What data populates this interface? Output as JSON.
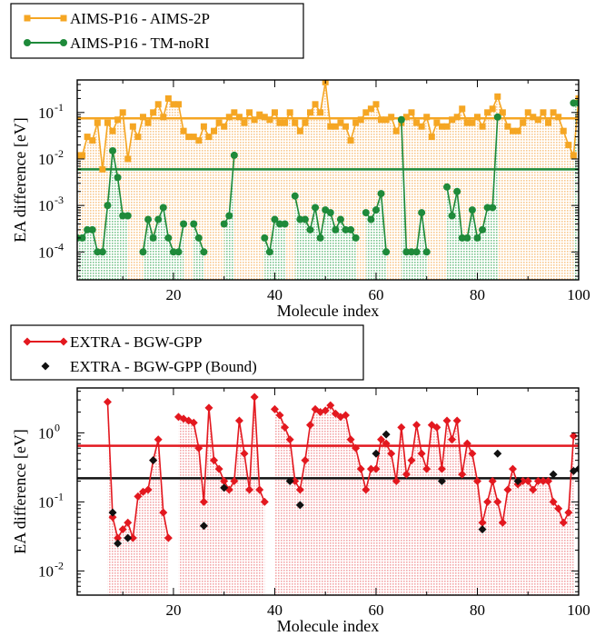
{
  "chart_data": [
    {
      "type": "line",
      "xlabel": "Molecule index",
      "ylabel": "EA difference [eV]",
      "xlim": [
        1,
        100
      ],
      "ylim_log10": [
        -4.6,
        -0.3
      ],
      "yscale": "log",
      "x_ticks": [
        20,
        40,
        60,
        80,
        100
      ],
      "y_ticks": [
        {
          "value": 0.0001,
          "label": "10",
          "exp": "-4"
        },
        {
          "value": 0.001,
          "label": "10",
          "exp": "-3"
        },
        {
          "value": 0.01,
          "label": "10",
          "exp": "-2"
        },
        {
          "value": 0.1,
          "label": "10",
          "exp": "-1"
        }
      ],
      "legend_position": "top-left",
      "series": [
        {
          "name": "AIMS-P16 - AIMS-2P",
          "color": "#f5a623",
          "fill_color": "#f9c98f",
          "marker": "square",
          "mean": 0.075,
          "x": [
            1,
            2,
            3,
            4,
            5,
            6,
            7,
            8,
            9,
            10,
            11,
            12,
            13,
            14,
            15,
            16,
            17,
            18,
            19,
            20,
            21,
            22,
            23,
            24,
            25,
            26,
            27,
            28,
            29,
            30,
            31,
            32,
            33,
            34,
            35,
            36,
            37,
            38,
            39,
            40,
            41,
            42,
            43,
            44,
            45,
            46,
            47,
            48,
            49,
            50,
            51,
            52,
            53,
            54,
            55,
            56,
            57,
            58,
            59,
            60,
            61,
            62,
            63,
            64,
            65,
            66,
            67,
            68,
            69,
            70,
            71,
            72,
            73,
            74,
            75,
            76,
            77,
            78,
            79,
            80,
            81,
            82,
            83,
            84,
            85,
            86,
            87,
            88,
            89,
            90,
            91,
            92,
            93,
            94,
            95,
            96,
            97,
            98,
            99,
            100
          ],
          "values": [
            0.012,
            0.012,
            0.03,
            0.025,
            0.06,
            0.006,
            0.06,
            0.04,
            0.07,
            0.1,
            0.01,
            0.05,
            0.03,
            0.08,
            0.06,
            0.1,
            0.15,
            0.08,
            0.2,
            0.15,
            0.15,
            0.04,
            0.03,
            0.03,
            0.025,
            0.05,
            0.03,
            0.04,
            0.06,
            0.05,
            0.08,
            0.1,
            0.08,
            0.06,
            0.1,
            0.07,
            0.09,
            0.08,
            0.07,
            0.1,
            0.06,
            0.06,
            0.1,
            0.06,
            0.04,
            0.06,
            0.1,
            0.15,
            0.1,
            0.45,
            0.05,
            0.05,
            0.06,
            0.05,
            0.025,
            0.06,
            0.07,
            0.1,
            0.12,
            0.15,
            0.07,
            0.07,
            0.08,
            0.04,
            0.06,
            0.08,
            0.1,
            0.06,
            0.05,
            0.08,
            0.03,
            0.06,
            0.05,
            0.05,
            0.07,
            0.08,
            0.12,
            0.06,
            0.06,
            0.08,
            0.05,
            0.1,
            0.12,
            0.22,
            0.1,
            0.05,
            0.04,
            0.04,
            0.06,
            0.1,
            0.08,
            0.07,
            0.1,
            0.06,
            0.1,
            0.08,
            0.04,
            0.02,
            0.012,
            0.2
          ]
        },
        {
          "name": "AIMS-P16 - TM-noRI",
          "color": "#1e8a3a",
          "fill_color": "#7cc58e",
          "marker": "circle",
          "mean": 0.006,
          "x": [
            1,
            2,
            3,
            4,
            5,
            6,
            7,
            8,
            9,
            10,
            11,
            12,
            13,
            14,
            15,
            16,
            17,
            18,
            19,
            20,
            21,
            22,
            23,
            24,
            25,
            26,
            27,
            28,
            29,
            30,
            31,
            32,
            33,
            34,
            35,
            36,
            37,
            38,
            39,
            40,
            41,
            42,
            43,
            44,
            45,
            46,
            47,
            48,
            49,
            50,
            51,
            52,
            53,
            54,
            55,
            56,
            57,
            58,
            59,
            60,
            61,
            62,
            63,
            64,
            65,
            66,
            67,
            68,
            69,
            70,
            71,
            72,
            73,
            74,
            75,
            76,
            77,
            78,
            79,
            80,
            81,
            82,
            83,
            84,
            85,
            86,
            87,
            88,
            89,
            90,
            91,
            92,
            93,
            94,
            95,
            96,
            97,
            98,
            99,
            100
          ],
          "values": [
            0.0002,
            0.0002,
            0.0003,
            0.0003,
            0.0001,
            0.0001,
            0.001,
            0.015,
            0.004,
            0.0006,
            0.0006,
            null,
            null,
            0.0001,
            0.0005,
            0.0002,
            0.0005,
            0.0009,
            0.0002,
            0.0001,
            0.0001,
            0.0004,
            null,
            0.0004,
            0.0002,
            0.0001,
            null,
            null,
            null,
            0.0004,
            0.0006,
            0.012,
            null,
            null,
            null,
            null,
            null,
            0.0002,
            0.0001,
            0.0005,
            0.0004,
            0.0004,
            null,
            0.0016,
            0.0005,
            0.0005,
            0.0003,
            0.0009,
            0.0002,
            0.0008,
            0.0007,
            0.0003,
            0.0005,
            0.0003,
            0.0003,
            0.0002,
            null,
            0.0007,
            0.0005,
            0.0008,
            0.0018,
            0.0001,
            null,
            null,
            0.07,
            0.0001,
            0.0001,
            0.0001,
            0.0007,
            0.0001,
            null,
            null,
            null,
            0.0025,
            0.0006,
            0.002,
            0.0002,
            0.0002,
            0.0008,
            0.0002,
            0.0003,
            0.0009,
            0.0009,
            0.08,
            null,
            null,
            null,
            null,
            null,
            null,
            null,
            null,
            null,
            null,
            null,
            null,
            null,
            null,
            0.16,
            0.16
          ]
        }
      ]
    },
    {
      "type": "line",
      "xlabel": "Molecule index",
      "ylabel": "EA difference [eV]",
      "xlim": [
        1,
        100
      ],
      "ylim_log10": [
        -2.35,
        0.65
      ],
      "yscale": "log",
      "x_ticks": [
        20,
        40,
        60,
        80,
        100
      ],
      "y_ticks": [
        {
          "value": 0.01,
          "label": "10",
          "exp": "-2"
        },
        {
          "value": 0.1,
          "label": "10",
          "exp": "-1"
        },
        {
          "value": 1,
          "label": "10",
          "exp": "0"
        }
      ],
      "legend_position": "top-left",
      "series": [
        {
          "name": "EXTRA - BGW-GPP",
          "color": "#e3181f",
          "fill_color": "#f4a6a9",
          "marker": "diamond",
          "mean": 0.65,
          "x": [
            1,
            2,
            3,
            4,
            5,
            6,
            7,
            8,
            9,
            10,
            11,
            12,
            13,
            14,
            15,
            16,
            17,
            18,
            19,
            20,
            21,
            22,
            23,
            24,
            25,
            26,
            27,
            28,
            29,
            30,
            31,
            32,
            33,
            34,
            35,
            36,
            37,
            38,
            39,
            40,
            41,
            42,
            43,
            44,
            45,
            46,
            47,
            48,
            49,
            50,
            51,
            52,
            53,
            54,
            55,
            56,
            57,
            58,
            59,
            60,
            61,
            62,
            63,
            64,
            65,
            66,
            67,
            68,
            69,
            70,
            71,
            72,
            73,
            74,
            75,
            76,
            77,
            78,
            79,
            80,
            81,
            82,
            83,
            84,
            85,
            86,
            87,
            88,
            89,
            90,
            91,
            92,
            93,
            94,
            95,
            96,
            97,
            98,
            99,
            100
          ],
          "values": [
            null,
            null,
            null,
            null,
            null,
            null,
            2.8,
            0.06,
            0.03,
            0.04,
            0.05,
            0.03,
            0.12,
            0.14,
            0.15,
            0.4,
            0.8,
            0.07,
            0.03,
            null,
            1.7,
            1.6,
            1.5,
            1.4,
            0.6,
            0.1,
            2.3,
            0.4,
            0.3,
            0.2,
            0.15,
            0.2,
            1.5,
            0.5,
            0.15,
            3.3,
            0.15,
            0.1,
            null,
            2.2,
            1.8,
            1.2,
            0.8,
            0.2,
            0.15,
            0.4,
            1.3,
            2.2,
            2.0,
            2.1,
            2.5,
            1.9,
            1.7,
            1.8,
            0.8,
            0.6,
            0.3,
            0.15,
            0.3,
            0.3,
            0.8,
            0.7,
            0.5,
            0.2,
            1.2,
            0.25,
            0.4,
            1.3,
            0.5,
            0.3,
            1.3,
            1.2,
            0.3,
            1.5,
            0.8,
            1.5,
            0.25,
            0.7,
            0.5,
            0.2,
            0.05,
            0.1,
            0.2,
            0.1,
            0.05,
            0.15,
            0.3,
            0.18,
            0.2,
            0.2,
            0.15,
            0.2,
            0.2,
            0.2,
            0.1,
            0.08,
            0.05,
            0.07,
            0.9,
            null
          ]
        },
        {
          "name": "EXTRA - BGW-GPP (Bound)",
          "color": "#111111",
          "marker": "diamond",
          "mean": 0.22,
          "x": [
            8,
            9,
            11,
            16,
            26,
            30,
            43,
            45,
            60,
            62,
            73,
            81,
            84,
            88,
            95,
            99,
            100
          ],
          "values": [
            0.07,
            0.025,
            0.03,
            0.4,
            0.045,
            0.16,
            0.2,
            0.09,
            0.5,
            0.95,
            0.2,
            0.04,
            0.5,
            0.2,
            0.25,
            0.28,
            0.3
          ]
        }
      ]
    }
  ]
}
